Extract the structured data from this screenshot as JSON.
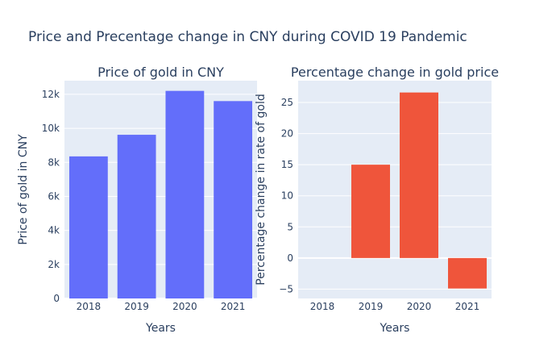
{
  "figure_title": "Price and Precentage change in CNY during COVID 19 Pandemic",
  "colors": {
    "left_bar": "#636efa",
    "right_bar": "#ef553b",
    "plot_bg": "#e5ecf6",
    "text": "#2a3f5f"
  },
  "chart_data": [
    {
      "type": "bar",
      "title": "Price of gold in CNY",
      "xlabel": "Years",
      "ylabel": "Price of gold in CNY",
      "categories": [
        "2018",
        "2019",
        "2020",
        "2021"
      ],
      "values": [
        8350,
        9620,
        12200,
        11600
      ],
      "ylim": [
        0,
        12800
      ],
      "yticks": [
        0,
        2000,
        4000,
        6000,
        8000,
        10000,
        12000
      ],
      "yticklabels": [
        "0",
        "2k",
        "4k",
        "6k",
        "8k",
        "10k",
        "12k"
      ],
      "grid": true,
      "color": "#636efa"
    },
    {
      "type": "bar",
      "title": "Percentage change in gold price",
      "xlabel": "Years",
      "ylabel": "Percentage change in rate of gold",
      "categories": [
        "2018",
        "2019",
        "2020",
        "2021"
      ],
      "values": [
        0,
        15,
        26.6,
        -4.9
      ],
      "ylim": [
        -6.5,
        28.5
      ],
      "yticks": [
        -5,
        0,
        5,
        10,
        15,
        20,
        25
      ],
      "yticklabels": [
        "−5",
        "0",
        "5",
        "10",
        "15",
        "20",
        "25"
      ],
      "grid": true,
      "color": "#ef553b"
    }
  ]
}
